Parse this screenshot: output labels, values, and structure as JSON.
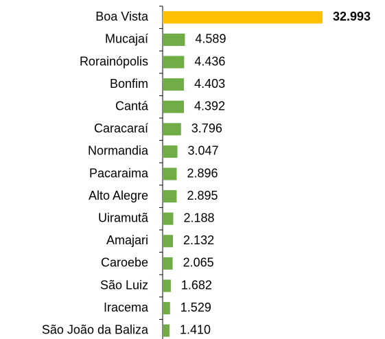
{
  "chart_data": {
    "type": "bar",
    "orientation": "horizontal",
    "categories": [
      "Boa Vista",
      "Mucajaí",
      "Rorainópolis",
      "Bonfim",
      "Cantá",
      "Caracaraí",
      "Normandia",
      "Pacaraima",
      "Alto Alegre",
      "Uiramutã",
      "Amajari",
      "Caroebe",
      "São Luiz",
      "Iracema",
      "São João da Baliza"
    ],
    "values": [
      32993,
      4589,
      4436,
      4403,
      4392,
      3796,
      3047,
      2896,
      2895,
      2188,
      2132,
      2065,
      1682,
      1529,
      1410
    ],
    "value_labels": [
      "32.993",
      "4.589",
      "4.436",
      "4.403",
      "4.392",
      "3.796",
      "3.047",
      "2.896",
      "2.895",
      "2.188",
      "2.132",
      "2.065",
      "1.682",
      "1.529",
      "1.410"
    ],
    "colors": [
      "#ffc000",
      "#70ad47",
      "#70ad47",
      "#70ad47",
      "#70ad47",
      "#70ad47",
      "#70ad47",
      "#70ad47",
      "#70ad47",
      "#70ad47",
      "#70ad47",
      "#70ad47",
      "#70ad47",
      "#70ad47",
      "#70ad47"
    ]
  }
}
